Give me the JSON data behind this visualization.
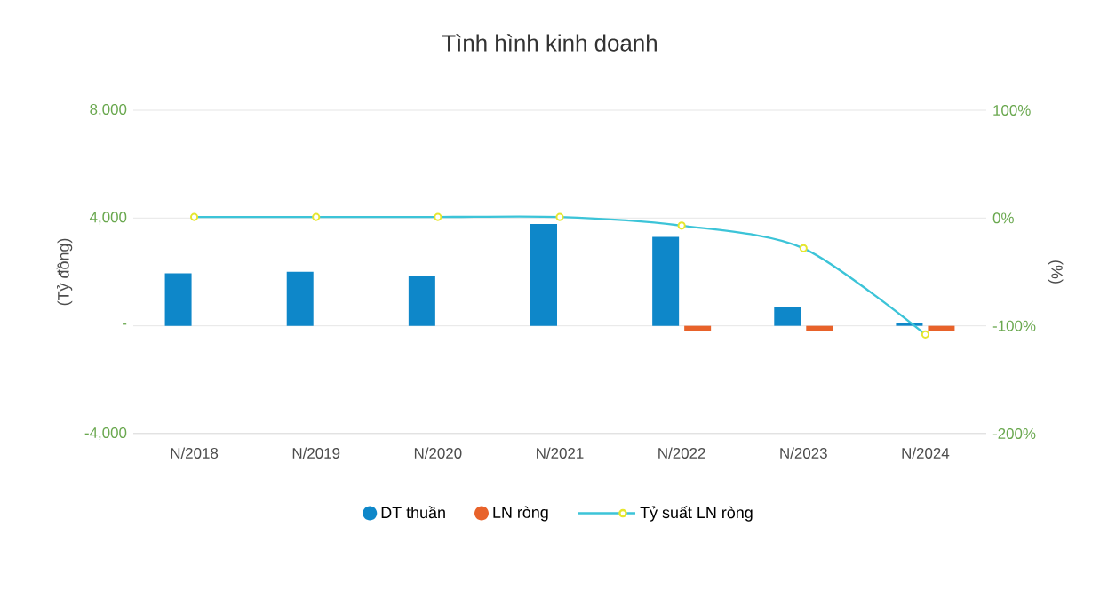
{
  "chart_data": {
    "type": "bar",
    "title": "Tình hình kinh doanh",
    "categories": [
      "N/2018",
      "N/2019",
      "N/2020",
      "N/2021",
      "N/2022",
      "N/2023",
      "N/2024"
    ],
    "series": [
      {
        "name": "DT thuần",
        "color": "#0e87c9",
        "values": [
          1950,
          2010,
          1840,
          3780,
          3300,
          710,
          110
        ]
      },
      {
        "name": "LN ròng",
        "color": "#e8622a",
        "values": [
          null,
          null,
          null,
          null,
          -200,
          -200,
          -200
        ]
      },
      {
        "name": "Tỷ suất LN ròng",
        "type": "line",
        "axis": "y2",
        "color": "#3cc4d8",
        "values": [
          1,
          1,
          1,
          1,
          -7,
          -28,
          -108
        ]
      }
    ],
    "ylabel": "(Tỷ đồng)",
    "y2label": "(%)",
    "ylim": [
      -4000,
      8000
    ],
    "yticks": [
      {
        "value": -4000,
        "label": "-4,000"
      },
      {
        "value": 0,
        "label": "-"
      },
      {
        "value": 4000,
        "label": "4,000"
      },
      {
        "value": 8000,
        "label": "8,000"
      }
    ],
    "y2lim": [
      -200,
      100
    ],
    "y2ticks": [
      {
        "value": -200,
        "label": "-200%"
      },
      {
        "value": -100,
        "label": "-100%"
      },
      {
        "value": 0,
        "label": "0%"
      },
      {
        "value": 100,
        "label": "100%"
      }
    ],
    "grid": "y",
    "legend": "bottom",
    "marker": "circle",
    "line_style": "solid"
  }
}
